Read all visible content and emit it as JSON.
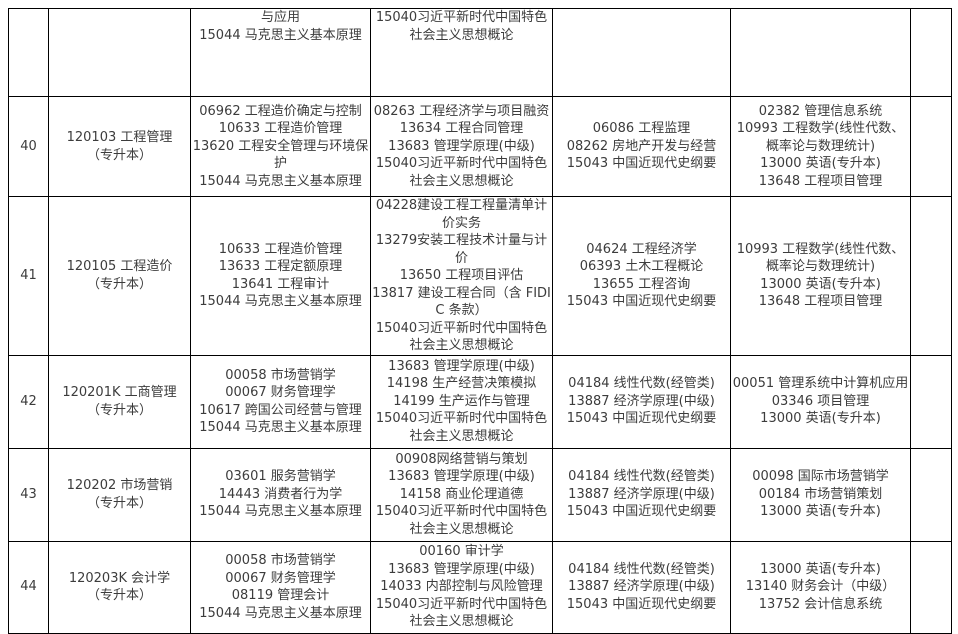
{
  "colors": {
    "background": "#ffffff",
    "border": "#000000",
    "text": "#3c3c3c"
  },
  "table": {
    "description": "self-study exam course schedule table, rows 40-44, continuation page",
    "rows": [
      {
        "no": "",
        "major": "",
        "slots": [
          [
            "与应用",
            "15044 马克思主义基本原理"
          ],
          [
            "15040习近平新时代中国特色社会主义思想概论"
          ],
          [],
          []
        ],
        "notes": ""
      },
      {
        "no": "40",
        "major": [
          "120103 工程管理",
          "（专升本）"
        ],
        "slots": [
          [
            "06962 工程造价确定与控制",
            "10633 工程造价管理",
            "13620 工程安全管理与环境保护",
            "15044 马克思主义基本原理"
          ],
          [
            "08263 工程经济学与项目融资",
            "13634 工程合同管理",
            "13683 管理学原理(中级)",
            "15040习近平新时代中国特色社会主义思想概论"
          ],
          [
            "06086 工程监理",
            "08262 房地产开发与经营",
            "15043 中国近现代史纲要"
          ],
          [
            "02382 管理信息系统",
            "10993 工程数学(线性代数、概率论与数理统计)",
            "13000 英语(专升本)",
            "13648 工程项目管理"
          ]
        ],
        "notes": ""
      },
      {
        "no": "41",
        "major": [
          "120105 工程造价",
          "（专升本）"
        ],
        "slots": [
          [
            "10633 工程造价管理",
            "13633 工程定额原理",
            "13641 工程审计",
            "15044 马克思主义基本原理"
          ],
          [
            "04228建设工程工程量清单计价实务",
            "13279安装工程技术计量与计价",
            "13650 工程项目评估",
            "13817 建设工程合同（含 FIDIC 条款）",
            "15040习近平新时代中国特色社会主义思想概论"
          ],
          [
            "04624 工程经济学",
            "06393 土木工程概论",
            "13655 工程咨询",
            "15043 中国近现代史纲要"
          ],
          [
            "10993 工程数学(线性代数、概率论与数理统计)",
            "13000 英语(专升本)",
            "13648 工程项目管理"
          ]
        ],
        "notes": ""
      },
      {
        "no": "42",
        "major": [
          "120201K 工商管理",
          "（专升本）"
        ],
        "slots": [
          [
            "00058 市场营销学",
            "00067 财务管理学",
            "10617 跨国公司经营与管理",
            "15044 马克思主义基本原理"
          ],
          [
            "13683 管理学原理(中级)",
            "14198 生产经营决策模拟",
            "14199 生产运作与管理",
            "15040习近平新时代中国特色社会主义思想概论"
          ],
          [
            "04184 线性代数(经管类)",
            "13887 经济学原理(中级)",
            "15043 中国近现代史纲要"
          ],
          [
            "00051 管理系统中计算机应用",
            "03346 项目管理",
            "13000 英语(专升本)"
          ]
        ],
        "notes": ""
      },
      {
        "no": "43",
        "major": [
          "120202 市场营销",
          "（专升本）"
        ],
        "slots": [
          [
            "03601 服务营销学",
            "14443 消费者行为学",
            "15044 马克思主义基本原理"
          ],
          [
            "00908网络营销与策划",
            "13683 管理学原理(中级)",
            "14158 商业伦理道德",
            "15040习近平新时代中国特色社会主义思想概论"
          ],
          [
            "04184 线性代数(经管类)",
            "13887 经济学原理(中级)",
            "15043 中国近现代史纲要"
          ],
          [
            "00098 国际市场营销学",
            "00184 市场营销策划",
            "13000 英语(专升本)"
          ]
        ],
        "notes": ""
      },
      {
        "no": "44",
        "major": [
          "120203K 会计学",
          "（专升本）"
        ],
        "slots": [
          [
            "00058 市场营销学",
            "00067 财务管理学",
            "08119 管理会计",
            "15044 马克思主义基本原理"
          ],
          [
            "00160 审计学",
            "13683 管理学原理(中级)",
            "14033 内部控制与风险管理",
            "15040习近平新时代中国特色社会主义思想概论"
          ],
          [
            "04184 线性代数(经管类)",
            "13887 经济学原理(中级)",
            "15043 中国近现代史纲要"
          ],
          [
            "13000 英语(专升本)",
            "13140 财务会计（中级）",
            "13752 会计信息系统"
          ]
        ],
        "notes": ""
      }
    ]
  }
}
